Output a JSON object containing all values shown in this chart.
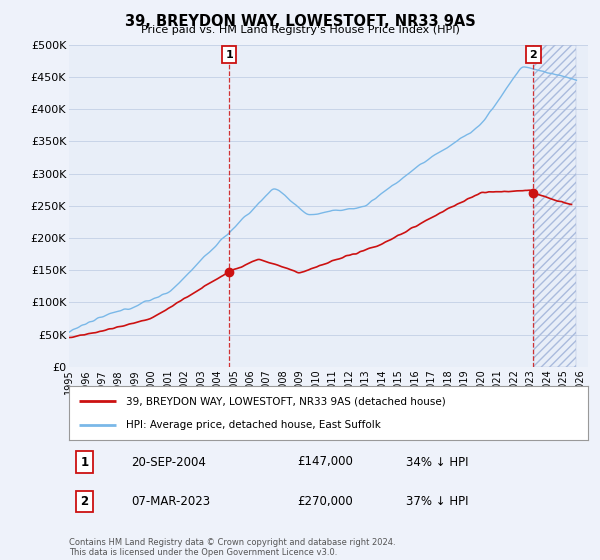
{
  "title": "39, BREYDON WAY, LOWESTOFT, NR33 9AS",
  "subtitle": "Price paid vs. HM Land Registry's House Price Index (HPI)",
  "ylabel_ticks": [
    "£0",
    "£50K",
    "£100K",
    "£150K",
    "£200K",
    "£250K",
    "£300K",
    "£350K",
    "£400K",
    "£450K",
    "£500K"
  ],
  "ylim": [
    0,
    500000
  ],
  "xlim_start": 1995.0,
  "xlim_end": 2026.5,
  "background_color": "#eef2fa",
  "plot_bg_color": "#e8eef8",
  "grid_color": "#c8d4e8",
  "hpi_color": "#7ab8e8",
  "sale_color": "#cc1111",
  "marker1_x": 2004.72,
  "marker1_y": 147000,
  "marker1_label": "1",
  "marker1_date": "20-SEP-2004",
  "marker1_price": "£147,000",
  "marker1_pct": "34% ↓ HPI",
  "marker2_x": 2023.18,
  "marker2_y": 270000,
  "marker2_label": "2",
  "marker2_date": "07-MAR-2023",
  "marker2_price": "£270,000",
  "marker2_pct": "37% ↓ HPI",
  "legend_sale": "39, BREYDON WAY, LOWESTOFT, NR33 9AS (detached house)",
  "legend_hpi": "HPI: Average price, detached house, East Suffolk",
  "footnote": "Contains HM Land Registry data © Crown copyright and database right 2024.\nThis data is licensed under the Open Government Licence v3.0.",
  "xticks": [
    1995,
    1996,
    1997,
    1998,
    1999,
    2000,
    2001,
    2002,
    2003,
    2004,
    2005,
    2006,
    2007,
    2008,
    2009,
    2010,
    2011,
    2012,
    2013,
    2014,
    2015,
    2016,
    2017,
    2018,
    2019,
    2020,
    2021,
    2022,
    2023,
    2024,
    2025,
    2026
  ]
}
